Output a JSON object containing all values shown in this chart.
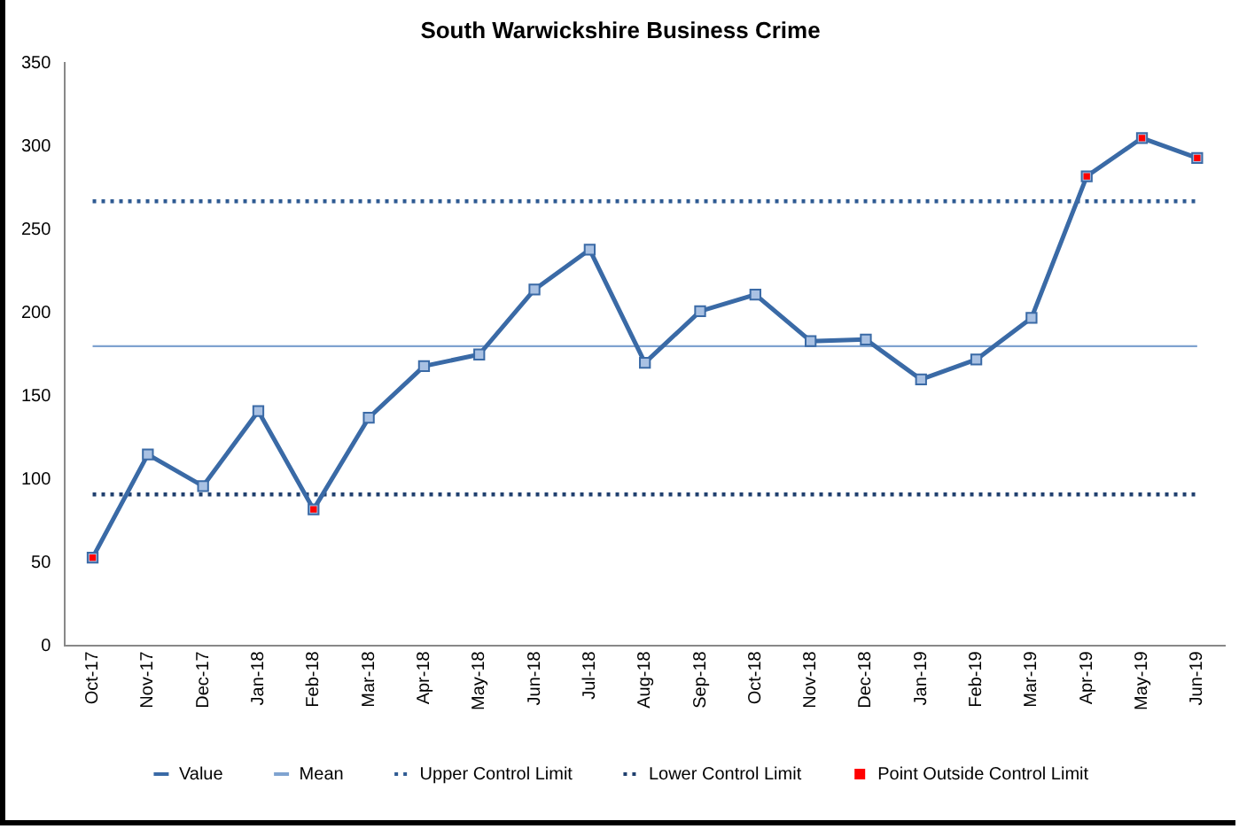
{
  "chart_data": {
    "type": "line",
    "title": "South Warwickshire Business Crime",
    "categories": [
      "Oct-17",
      "Nov-17",
      "Dec-17",
      "Jan-18",
      "Feb-18",
      "Mar-18",
      "Apr-18",
      "May-18",
      "Jun-18",
      "Jul-18",
      "Aug-18",
      "Sep-18",
      "Oct-18",
      "Nov-18",
      "Dec-18",
      "Jan-19",
      "Feb-19",
      "Mar-19",
      "Apr-19",
      "May-19",
      "Jun-19"
    ],
    "series": [
      {
        "name": "Value",
        "color": "#3a6aa6",
        "marker": "square",
        "line_style": "solid",
        "values": [
          53,
          115,
          96,
          141,
          82,
          137,
          168,
          175,
          214,
          238,
          170,
          201,
          211,
          183,
          184,
          160,
          172,
          197,
          282,
          305,
          293
        ]
      },
      {
        "name": "Mean",
        "color": "#7fa3d0",
        "marker": "none",
        "line_style": "solid",
        "values": [
          180,
          180,
          180,
          180,
          180,
          180,
          180,
          180,
          180,
          180,
          180,
          180,
          180,
          180,
          180,
          180,
          180,
          180,
          180,
          180,
          180
        ]
      },
      {
        "name": "Upper Control Limit",
        "color": "#2f5b93",
        "marker": "none",
        "line_style": "dotted",
        "values": [
          267,
          267,
          267,
          267,
          267,
          267,
          267,
          267,
          267,
          267,
          267,
          267,
          267,
          267,
          267,
          267,
          267,
          267,
          267,
          267,
          267
        ]
      },
      {
        "name": "Lower Control Limit",
        "color": "#1f3f6e",
        "marker": "none",
        "line_style": "dotted",
        "values": [
          91,
          91,
          91,
          91,
          91,
          91,
          91,
          91,
          91,
          91,
          91,
          91,
          91,
          91,
          91,
          91,
          91,
          91,
          91,
          91,
          91
        ]
      },
      {
        "name": "Point Outside Control Limit",
        "type": "scatter",
        "color": "#ff0000",
        "marker": "square",
        "x": [
          "Oct-17",
          "Feb-18",
          "Apr-19",
          "May-19",
          "Jun-19"
        ],
        "values": [
          53,
          82,
          282,
          305,
          293
        ]
      }
    ],
    "ylim": [
      0,
      350
    ],
    "yticks": [
      0,
      50,
      100,
      150,
      200,
      250,
      300,
      350
    ],
    "grid": false,
    "legend": "bottom"
  }
}
